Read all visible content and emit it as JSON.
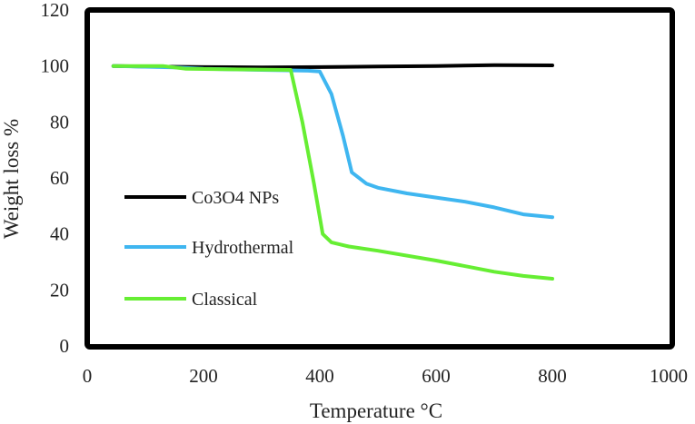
{
  "chart_data": {
    "type": "line",
    "title": "",
    "xlabel": "Temperature °C",
    "ylabel": "Weight loss %",
    "xlim": [
      0,
      1000
    ],
    "ylim": [
      0,
      120
    ],
    "xticks": [
      0,
      200,
      400,
      600,
      800,
      1000
    ],
    "yticks": [
      0,
      20,
      40,
      60,
      80,
      100,
      120
    ],
    "grid": false,
    "legend_position": "inside-left",
    "series": [
      {
        "name": "Co3O4 NPs",
        "color": "#000000",
        "x": [
          45,
          100,
          200,
          300,
          400,
          500,
          600,
          700,
          800
        ],
        "y": [
          100,
          99.8,
          99.6,
          99.5,
          99.6,
          99.8,
          100,
          100.3,
          100.2
        ]
      },
      {
        "name": "Hydrothermal",
        "color": "#3fb6f0",
        "x": [
          45,
          150,
          200,
          300,
          380,
          400,
          420,
          440,
          455,
          480,
          500,
          550,
          600,
          650,
          700,
          750,
          800
        ],
        "y": [
          100,
          99.5,
          99,
          98.6,
          98.3,
          98,
          90,
          75,
          62,
          58,
          56.5,
          54.5,
          53,
          51.5,
          49.5,
          47,
          46
        ]
      },
      {
        "name": "Classical",
        "color": "#66ee33",
        "x": [
          45,
          130,
          170,
          250,
          350,
          370,
          390,
          405,
          420,
          450,
          500,
          600,
          700,
          750,
          800
        ],
        "y": [
          100,
          100,
          99,
          98.8,
          98.6,
          80,
          58,
          40,
          37,
          35.5,
          34,
          30.5,
          26.5,
          25,
          24
        ]
      }
    ]
  }
}
